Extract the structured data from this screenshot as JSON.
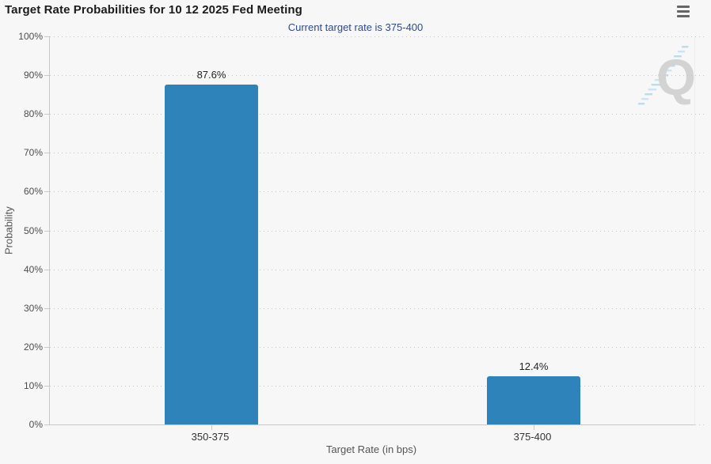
{
  "header": {
    "title": "Target Rate Probabilities for 10 12 2025 Fed Meeting"
  },
  "icons": {
    "menu": "hamburger-menu-icon"
  },
  "watermark": {
    "name": "quikstrike-logo",
    "letter": "Q"
  },
  "chart_data": {
    "type": "bar",
    "title": "Target Rate Probabilities for 10 12 2025 Fed Meeting",
    "subtitle": "Current target rate is 375-400",
    "categories": [
      "350-375",
      "375-400"
    ],
    "values": [
      87.6,
      12.4
    ],
    "data_labels": [
      "87.6%",
      "12.4%"
    ],
    "xlabel": "Target Rate (in bps)",
    "ylabel": "Probability",
    "ylim": [
      0,
      100
    ],
    "ytick_step": 10,
    "ytick_suffix": "%",
    "grid": "horizontal-dotted",
    "legend": "none",
    "colors": {
      "bar": "#2d83ba",
      "title": "#1b1b1b",
      "subtitle": "#2d4b8e",
      "axis": "#c9c9c9",
      "tick_labels": "#4d4d4d",
      "background": "#f7f7f7",
      "watermark_gray": "#d3d3d3",
      "watermark_blue": "#a9d6ec"
    }
  }
}
